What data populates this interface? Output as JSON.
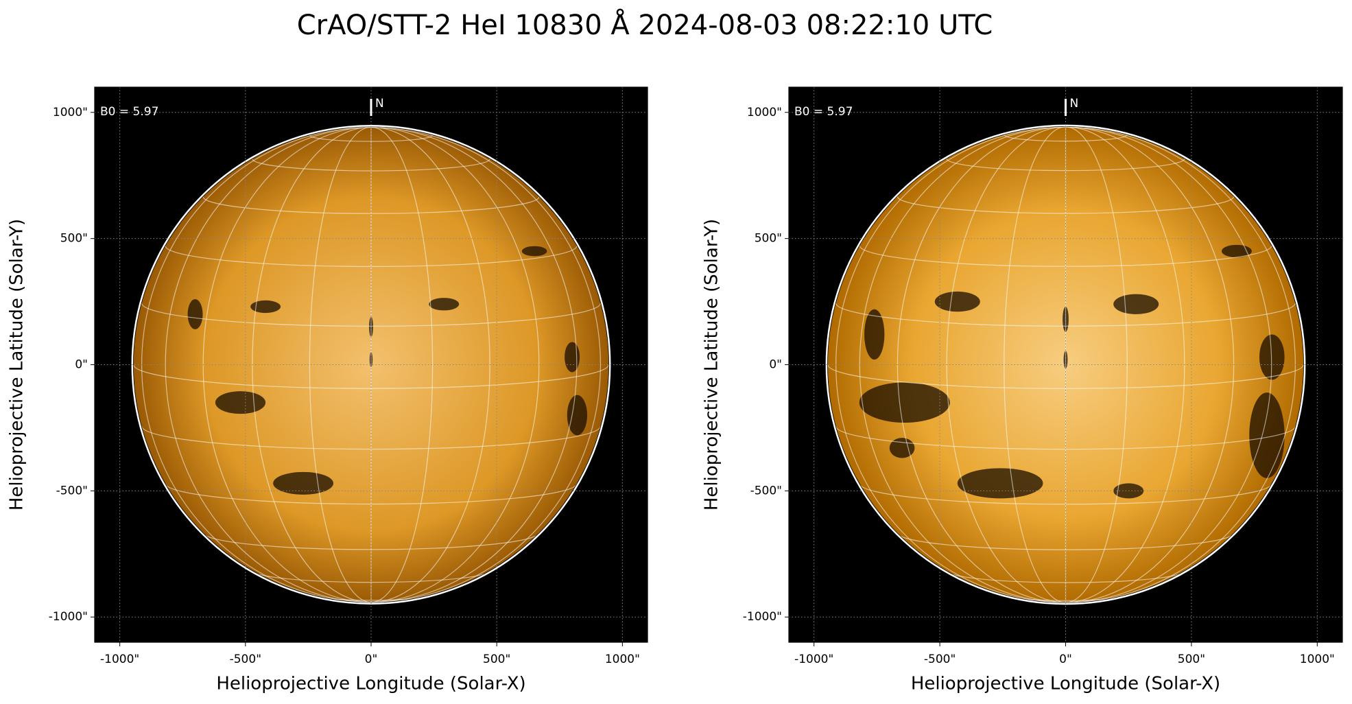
{
  "title": "CrAO/STT-2 HeI 10830 Å 2024-08-03 08:22:10 UTC",
  "chart_data": [
    {
      "type": "image",
      "annotation": "B0 = 5.97",
      "north_label": "N",
      "xlabel": "Helioprojective Longitude (Solar-X)",
      "ylabel": "Helioprojective Latitude (Solar-Y)",
      "xlim": [
        -1100,
        1100
      ],
      "ylim": [
        -1100,
        1100
      ],
      "disk_radius": 945,
      "xticks": [
        {
          "value": -1000,
          "label": "-1000\""
        },
        {
          "value": -500,
          "label": "-500\""
        },
        {
          "value": 0,
          "label": "0\""
        },
        {
          "value": 500,
          "label": "500\""
        },
        {
          "value": 1000,
          "label": "1000\""
        }
      ],
      "yticks": [
        {
          "value": -1000,
          "label": "-1000\""
        },
        {
          "value": -500,
          "label": "-500\""
        },
        {
          "value": 0,
          "label": "0\""
        },
        {
          "value": 500,
          "label": "500\""
        },
        {
          "value": 1000,
          "label": "1000\""
        }
      ],
      "grid": true
    },
    {
      "type": "image",
      "annotation": "B0 = 5.97",
      "north_label": "N",
      "xlabel": "Helioprojective Longitude (Solar-X)",
      "ylabel": "Helioprojective Latitude (Solar-Y)",
      "xlim": [
        -1100,
        1100
      ],
      "ylim": [
        -1100,
        1100
      ],
      "disk_radius": 945,
      "xticks": [
        {
          "value": -1000,
          "label": "-1000\""
        },
        {
          "value": -500,
          "label": "-500\""
        },
        {
          "value": 0,
          "label": "0\""
        },
        {
          "value": 500,
          "label": "500\""
        },
        {
          "value": 1000,
          "label": "1000\""
        }
      ],
      "yticks": [
        {
          "value": -1000,
          "label": "-1000\""
        },
        {
          "value": -500,
          "label": "-500\""
        },
        {
          "value": 0,
          "label": "0\""
        },
        {
          "value": 500,
          "label": "500\""
        },
        {
          "value": 1000,
          "label": "1000\""
        }
      ],
      "grid": true
    }
  ]
}
